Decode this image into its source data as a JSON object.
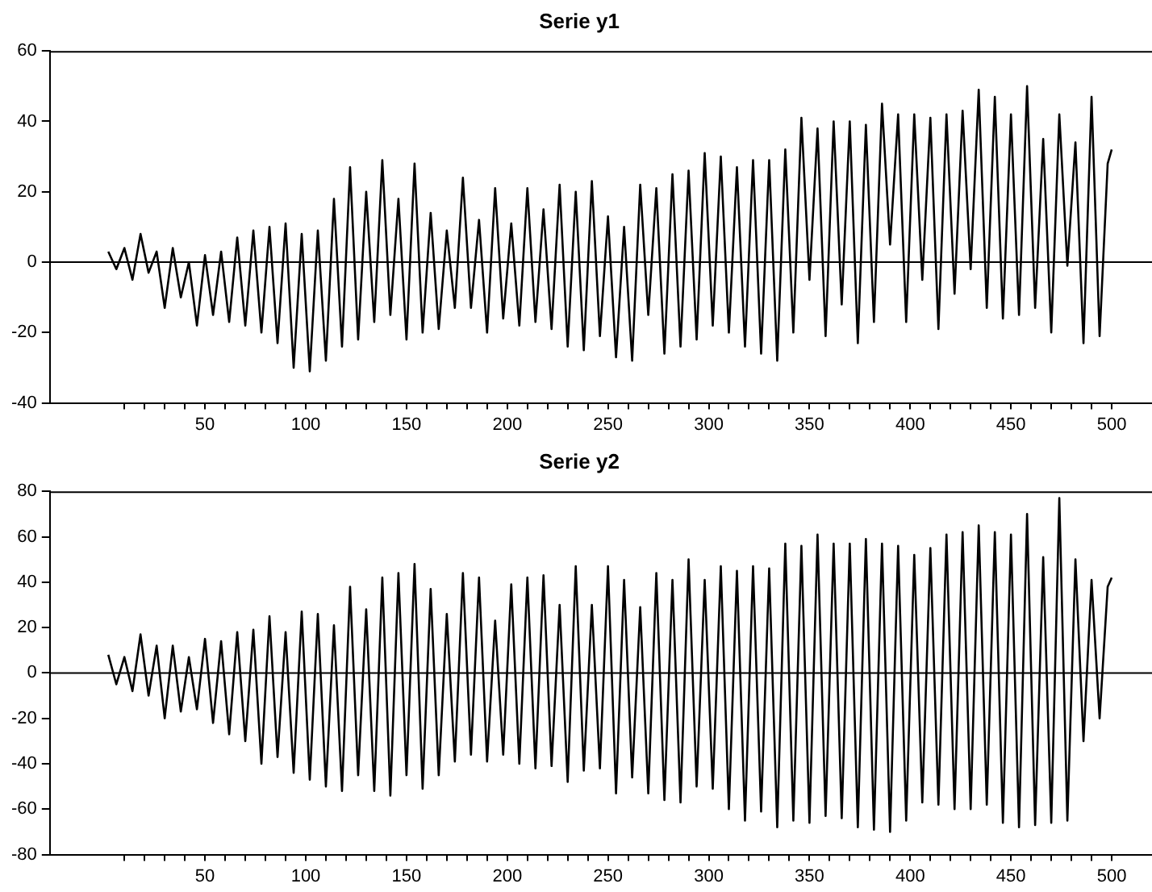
{
  "chart_data": [
    {
      "type": "line",
      "title": "Serie y1",
      "marker": "none",
      "line_style": "solid",
      "xlim": [
        -27,
        520
      ],
      "ylim": [
        -40,
        60
      ],
      "yticks": [
        -40,
        -20,
        0,
        20,
        40,
        60
      ],
      "xticks": [
        {
          "value": 10,
          "label": null
        },
        {
          "value": 20,
          "label": null
        },
        {
          "value": 30,
          "label": null
        },
        {
          "value": 40,
          "label": null
        },
        50,
        {
          "value": 60,
          "label": null
        },
        {
          "value": 70,
          "label": null
        },
        {
          "value": 80,
          "label": null
        },
        {
          "value": 90,
          "label": null
        },
        100,
        {
          "value": 110,
          "label": null
        },
        {
          "value": 120,
          "label": null
        },
        {
          "value": 130,
          "label": null
        },
        {
          "value": 140,
          "label": null
        },
        150,
        {
          "value": 160,
          "label": null
        },
        {
          "value": 170,
          "label": null
        },
        {
          "value": 180,
          "label": null
        },
        {
          "value": 190,
          "label": null
        },
        200,
        {
          "value": 210,
          "label": null
        },
        {
          "value": 220,
          "label": null
        },
        {
          "value": 230,
          "label": null
        },
        {
          "value": 240,
          "label": null
        },
        250,
        {
          "value": 260,
          "label": null
        },
        {
          "value": 270,
          "label": null
        },
        {
          "value": 280,
          "label": null
        },
        {
          "value": 290,
          "label": null
        },
        300,
        {
          "value": 310,
          "label": null
        },
        {
          "value": 320,
          "label": null
        },
        {
          "value": 330,
          "label": null
        },
        {
          "value": 340,
          "label": null
        },
        350,
        {
          "value": 360,
          "label": null
        },
        {
          "value": 370,
          "label": null
        },
        {
          "value": 380,
          "label": null
        },
        {
          "value": 390,
          "label": null
        },
        400,
        {
          "value": 410,
          "label": null
        },
        {
          "value": 420,
          "label": null
        },
        {
          "value": 430,
          "label": null
        },
        {
          "value": 440,
          "label": null
        },
        450,
        {
          "value": 460,
          "label": null
        },
        {
          "value": 470,
          "label": null
        },
        {
          "value": 480,
          "label": null
        },
        {
          "value": 490,
          "label": null
        },
        500
      ],
      "ref_lines": [
        {
          "axis": "y",
          "value": 0,
          "color": "#000000"
        }
      ],
      "x": [
        2,
        6,
        10,
        14,
        18,
        22,
        26,
        30,
        34,
        38,
        42,
        46,
        50,
        54,
        58,
        62,
        66,
        70,
        74,
        78,
        82,
        86,
        90,
        94,
        98,
        102,
        106,
        110,
        114,
        118,
        122,
        126,
        130,
        134,
        138,
        142,
        146,
        150,
        154,
        158,
        162,
        166,
        170,
        174,
        178,
        182,
        186,
        190,
        194,
        198,
        202,
        206,
        210,
        214,
        218,
        222,
        226,
        230,
        234,
        238,
        242,
        246,
        250,
        254,
        258,
        262,
        266,
        270,
        274,
        278,
        282,
        286,
        290,
        294,
        298,
        302,
        306,
        310,
        314,
        318,
        322,
        326,
        330,
        334,
        338,
        342,
        346,
        350,
        354,
        358,
        362,
        366,
        370,
        374,
        378,
        382,
        386,
        390,
        394,
        398,
        402,
        406,
        410,
        414,
        418,
        422,
        426,
        430,
        434,
        438,
        442,
        446,
        450,
        454,
        458,
        462,
        466,
        470,
        474,
        478,
        482,
        486,
        490,
        494,
        498,
        500
      ],
      "series": [
        {
          "color": "#000000",
          "values": [
            3,
            -2,
            4,
            -5,
            8,
            -3,
            3,
            -13,
            4,
            -10,
            0,
            -18,
            2,
            -15,
            3,
            -17,
            7,
            -18,
            9,
            -20,
            10,
            -23,
            11,
            -30,
            8,
            -31,
            9,
            -28,
            18,
            -24,
            27,
            -22,
            20,
            -17,
            29,
            -15,
            18,
            -22,
            28,
            -20,
            14,
            -19,
            9,
            -13,
            24,
            -13,
            12,
            -20,
            21,
            -16,
            11,
            -18,
            21,
            -17,
            15,
            -19,
            22,
            -24,
            20,
            -25,
            23,
            -21,
            13,
            -27,
            10,
            -28,
            22,
            -15,
            21,
            -26,
            25,
            -24,
            26,
            -22,
            31,
            -18,
            30,
            -20,
            27,
            -24,
            29,
            -26,
            29,
            -28,
            32,
            -20,
            41,
            -5,
            38,
            -21,
            40,
            -12,
            40,
            -23,
            39,
            -17,
            45,
            5,
            42,
            -17,
            42,
            -5,
            41,
            -19,
            42,
            -9,
            43,
            -2,
            49,
            -13,
            47,
            -16,
            42,
            -15,
            50,
            -13,
            35,
            -20,
            42,
            -1,
            34,
            -23,
            47,
            -21,
            28,
            32
          ]
        }
      ]
    },
    {
      "type": "line",
      "title": "Serie y2",
      "marker": "none",
      "line_style": "solid",
      "xlim": [
        -27,
        520
      ],
      "ylim": [
        -80,
        80
      ],
      "yticks": [
        -80,
        -60,
        -40,
        -20,
        0,
        20,
        40,
        60,
        80
      ],
      "xticks": [
        {
          "value": 10,
          "label": null
        },
        {
          "value": 20,
          "label": null
        },
        {
          "value": 30,
          "label": null
        },
        {
          "value": 40,
          "label": null
        },
        50,
        {
          "value": 60,
          "label": null
        },
        {
          "value": 70,
          "label": null
        },
        {
          "value": 80,
          "label": null
        },
        {
          "value": 90,
          "label": null
        },
        100,
        {
          "value": 110,
          "label": null
        },
        {
          "value": 120,
          "label": null
        },
        {
          "value": 130,
          "label": null
        },
        {
          "value": 140,
          "label": null
        },
        150,
        {
          "value": 160,
          "label": null
        },
        {
          "value": 170,
          "label": null
        },
        {
          "value": 180,
          "label": null
        },
        {
          "value": 190,
          "label": null
        },
        200,
        {
          "value": 210,
          "label": null
        },
        {
          "value": 220,
          "label": null
        },
        {
          "value": 230,
          "label": null
        },
        {
          "value": 240,
          "label": null
        },
        250,
        {
          "value": 260,
          "label": null
        },
        {
          "value": 270,
          "label": null
        },
        {
          "value": 280,
          "label": null
        },
        {
          "value": 290,
          "label": null
        },
        300,
        {
          "value": 310,
          "label": null
        },
        {
          "value": 320,
          "label": null
        },
        {
          "value": 330,
          "label": null
        },
        {
          "value": 340,
          "label": null
        },
        350,
        {
          "value": 360,
          "label": null
        },
        {
          "value": 370,
          "label": null
        },
        {
          "value": 380,
          "label": null
        },
        {
          "value": 390,
          "label": null
        },
        400,
        {
          "value": 410,
          "label": null
        },
        {
          "value": 420,
          "label": null
        },
        {
          "value": 430,
          "label": null
        },
        {
          "value": 440,
          "label": null
        },
        450,
        {
          "value": 460,
          "label": null
        },
        {
          "value": 470,
          "label": null
        },
        {
          "value": 480,
          "label": null
        },
        {
          "value": 490,
          "label": null
        },
        500
      ],
      "ref_lines": [
        {
          "axis": "y",
          "value": 0,
          "color": "#000000"
        }
      ],
      "x": [
        2,
        6,
        10,
        14,
        18,
        22,
        26,
        30,
        34,
        38,
        42,
        46,
        50,
        54,
        58,
        62,
        66,
        70,
        74,
        78,
        82,
        86,
        90,
        94,
        98,
        102,
        106,
        110,
        114,
        118,
        122,
        126,
        130,
        134,
        138,
        142,
        146,
        150,
        154,
        158,
        162,
        166,
        170,
        174,
        178,
        182,
        186,
        190,
        194,
        198,
        202,
        206,
        210,
        214,
        218,
        222,
        226,
        230,
        234,
        238,
        242,
        246,
        250,
        254,
        258,
        262,
        266,
        270,
        274,
        278,
        282,
        286,
        290,
        294,
        298,
        302,
        306,
        310,
        314,
        318,
        322,
        326,
        330,
        334,
        338,
        342,
        346,
        350,
        354,
        358,
        362,
        366,
        370,
        374,
        378,
        382,
        386,
        390,
        394,
        398,
        402,
        406,
        410,
        414,
        418,
        422,
        426,
        430,
        434,
        438,
        442,
        446,
        450,
        454,
        458,
        462,
        466,
        470,
        474,
        478,
        482,
        486,
        490,
        494,
        498,
        500
      ],
      "series": [
        {
          "color": "#000000",
          "values": [
            8,
            -5,
            7,
            -8,
            17,
            -10,
            12,
            -20,
            12,
            -17,
            7,
            -16,
            15,
            -22,
            14,
            -27,
            18,
            -30,
            19,
            -40,
            25,
            -37,
            18,
            -44,
            27,
            -47,
            26,
            -50,
            21,
            -52,
            38,
            -45,
            28,
            -52,
            42,
            -54,
            44,
            -45,
            48,
            -51,
            37,
            -45,
            26,
            -39,
            44,
            -36,
            42,
            -39,
            23,
            -36,
            39,
            -40,
            42,
            -42,
            43,
            -41,
            30,
            -48,
            47,
            -43,
            30,
            -42,
            47,
            -53,
            41,
            -46,
            29,
            -53,
            44,
            -56,
            41,
            -57,
            50,
            -50,
            41,
            -51,
            47,
            -60,
            45,
            -65,
            47,
            -61,
            46,
            -68,
            57,
            -65,
            56,
            -66,
            61,
            -63,
            57,
            -64,
            57,
            -68,
            59,
            -69,
            57,
            -70,
            56,
            -65,
            52,
            -57,
            55,
            -58,
            61,
            -60,
            62,
            -60,
            65,
            -58,
            62,
            -66,
            61,
            -68,
            70,
            -67,
            51,
            -66,
            77,
            -65,
            50,
            -30,
            41,
            -20,
            38,
            42
          ]
        }
      ]
    }
  ]
}
